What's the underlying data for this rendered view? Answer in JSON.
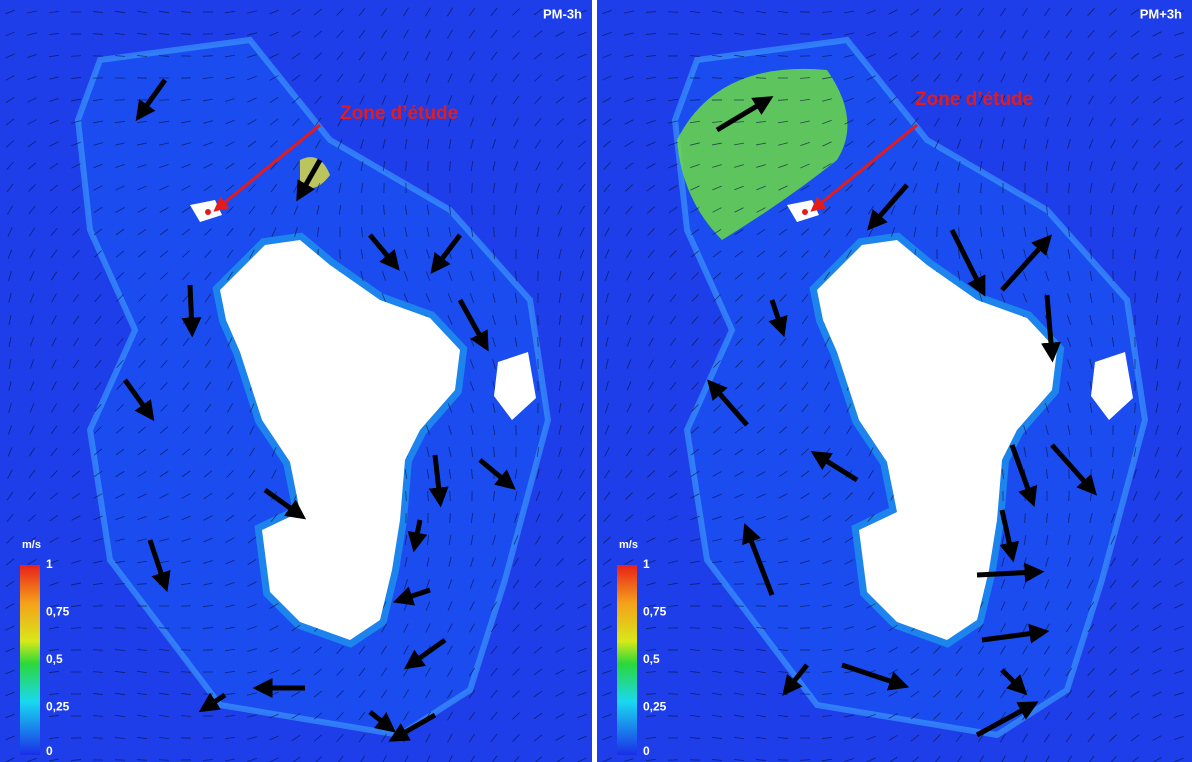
{
  "panels": [
    {
      "label": "PM-3h",
      "annotation": "Zone d’étude",
      "colorbar": {
        "unit": "m/s",
        "ticks": [
          {
            "value": 1,
            "label": "1"
          },
          {
            "value": 0.75,
            "label": "0,75"
          },
          {
            "value": 0.5,
            "label": "0,5"
          },
          {
            "value": 0.25,
            "label": "0,25"
          },
          {
            "value": 0,
            "label": "0"
          }
        ]
      }
    },
    {
      "label": "PM+3h",
      "annotation": "Zone d’étude",
      "colorbar": {
        "unit": "m/s",
        "ticks": [
          {
            "value": 1,
            "label": "1"
          },
          {
            "value": 0.75,
            "label": "0,75"
          },
          {
            "value": 0.5,
            "label": "0,5"
          },
          {
            "value": 0.25,
            "label": "0,25"
          },
          {
            "value": 0,
            "label": "0"
          }
        ]
      }
    }
  ]
}
